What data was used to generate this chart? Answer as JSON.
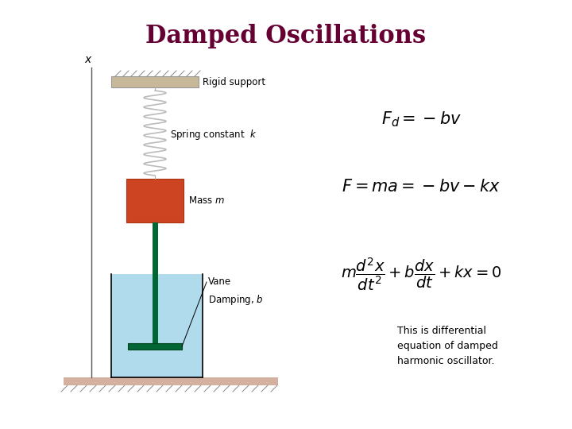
{
  "title": "Damped Oscillations",
  "title_color": "#660033",
  "title_fontsize": 22,
  "title_weight": "bold",
  "background_color": "#ffffff",
  "caption": "This is differential\nequation of damped\nharmonic oscillator.",
  "label_rigid": "Rigid support",
  "label_spring": "Spring constant  $k$",
  "label_mass": "Mass $m$",
  "label_vane": "Vane",
  "label_damping": "Damping, $b$",
  "label_x": "$x$",
  "rigid_color": "#c8b89a",
  "mass_color": "#cc4422",
  "fluid_color": "#a8d8ea",
  "vane_color": "#006633",
  "rod_color": "#006633",
  "floor_color": "#d4b0a0",
  "spring_color": "#bbbbbb",
  "wall_color": "#555555"
}
